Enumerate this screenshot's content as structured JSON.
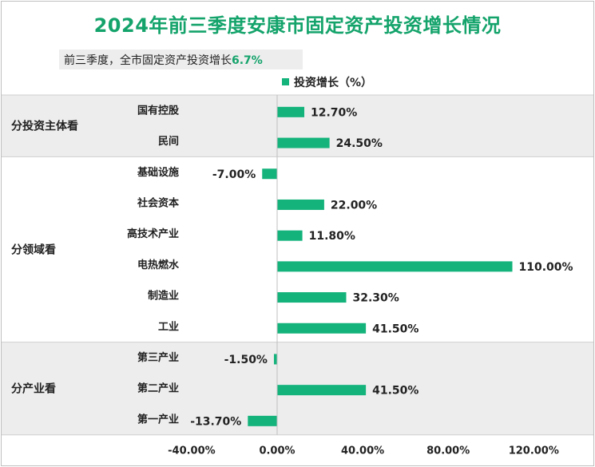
{
  "title": "2024年前三季度安康市固定资产投资增长情况",
  "subtitle": {
    "text": "前三季度，全市固定资产投资增长",
    "value": "6.7%"
  },
  "colors": {
    "bar": "#14b37c",
    "title": "#14a36b",
    "band": "#ededed"
  },
  "chart_data": {
    "type": "bar",
    "orientation": "horizontal",
    "legend": {
      "label": "投资增长（%）",
      "position": "top"
    },
    "xlim": [
      -40,
      120
    ],
    "xticks": [
      "-40.00%",
      "0.00%",
      "40.00%",
      "80.00%",
      "120.00%"
    ],
    "groups": [
      {
        "name": "分投资主体看",
        "shaded": true,
        "categories": [
          "国有控股",
          "民间"
        ],
        "values": [
          12.7,
          24.5
        ],
        "labels": [
          "12.70%",
          "24.50%"
        ]
      },
      {
        "name": "分领域看",
        "shaded": false,
        "categories": [
          "基础设施",
          "社会资本",
          "高技术产业",
          "电热燃水",
          "制造业",
          "工业"
        ],
        "values": [
          -7.0,
          22.0,
          11.8,
          110.0,
          32.3,
          41.5
        ],
        "labels": [
          "-7.00%",
          "22.00%",
          "11.80%",
          "110.00%",
          "32.30%",
          "41.50%"
        ]
      },
      {
        "name": "分产业看",
        "shaded": true,
        "categories": [
          "第三产业",
          "第二产业",
          "第一产业"
        ],
        "values": [
          -1.5,
          41.5,
          -13.7
        ],
        "labels": [
          "-1.50%",
          "41.50%",
          "-13.70%"
        ]
      }
    ]
  }
}
